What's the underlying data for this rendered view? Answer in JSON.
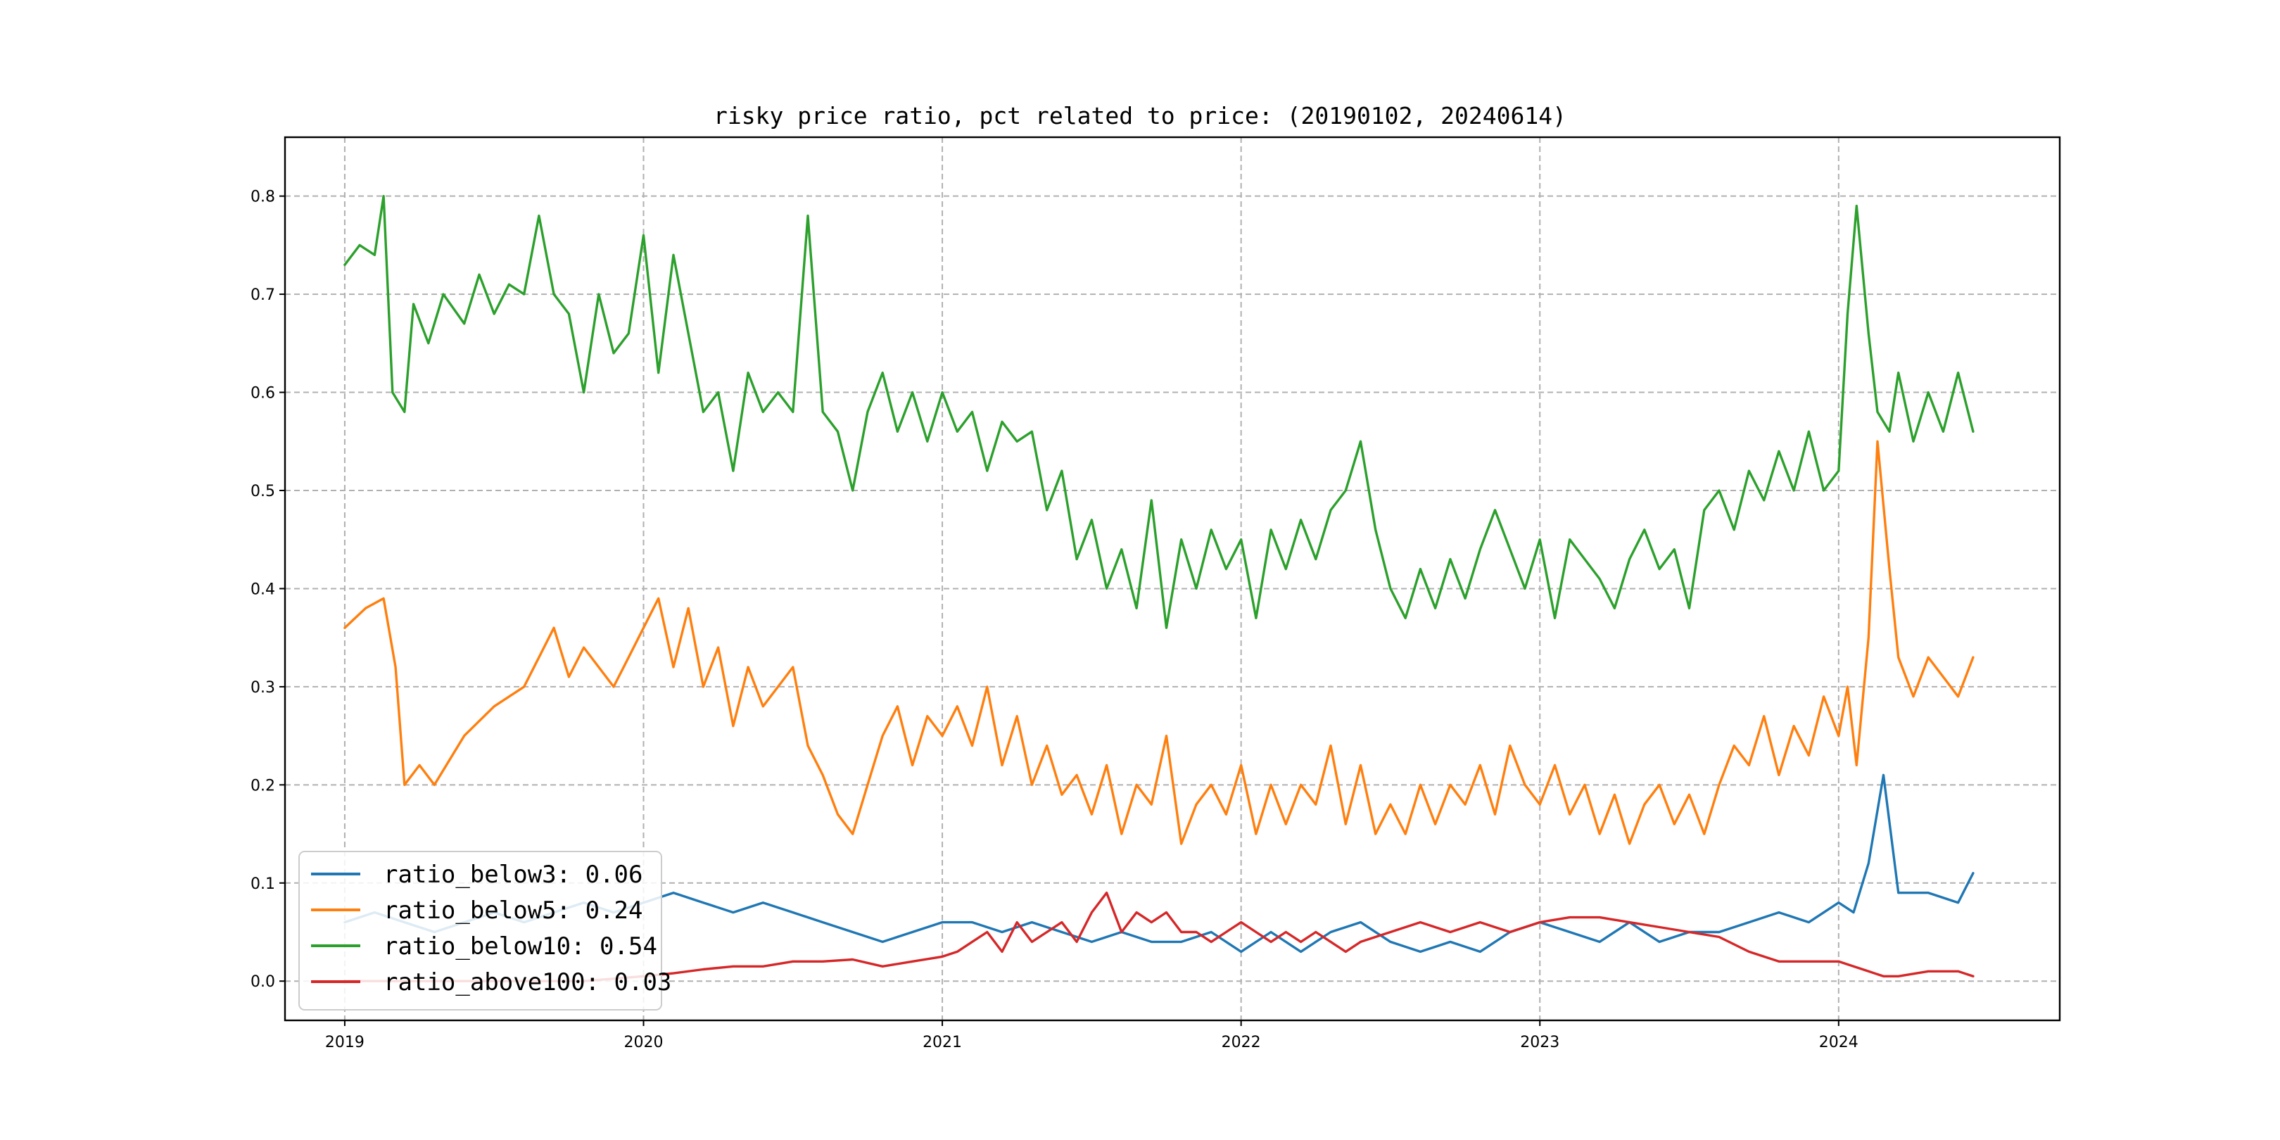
{
  "chart_data": {
    "type": "line",
    "title": "risky price ratio, pct related to price: (20190102, 20240614)",
    "xlabel": "",
    "ylabel": "",
    "xlim": [
      2018.8,
      2024.74
    ],
    "ylim": [
      -0.04,
      0.86
    ],
    "x_ticks": [
      2019,
      2020,
      2021,
      2022,
      2023,
      2024
    ],
    "x_tick_labels": [
      "2019",
      "2020",
      "2021",
      "2022",
      "2023",
      "2024"
    ],
    "y_ticks": [
      0.0,
      0.1,
      0.2,
      0.3,
      0.4,
      0.5,
      0.6,
      0.7,
      0.8
    ],
    "y_tick_labels": [
      "0.0",
      "0.1",
      "0.2",
      "0.3",
      "0.4",
      "0.5",
      "0.6",
      "0.7",
      "0.8"
    ],
    "grid": true,
    "legend_position": "lower-left",
    "series": [
      {
        "name": "ratio_below3",
        "legend_label": "ratio_below3: 0.06",
        "color": "#1f77b4",
        "x": [
          2019.0,
          2019.1,
          2019.2,
          2019.3,
          2019.4,
          2019.5,
          2019.6,
          2019.7,
          2019.8,
          2019.9,
          2020.0,
          2020.1,
          2020.2,
          2020.3,
          2020.4,
          2020.5,
          2020.6,
          2020.7,
          2020.8,
          2020.9,
          2021.0,
          2021.1,
          2021.2,
          2021.3,
          2021.4,
          2021.5,
          2021.6,
          2021.7,
          2021.8,
          2021.9,
          2022.0,
          2022.1,
          2022.2,
          2022.3,
          2022.4,
          2022.5,
          2022.6,
          2022.7,
          2022.8,
          2022.9,
          2023.0,
          2023.1,
          2023.2,
          2023.3,
          2023.4,
          2023.5,
          2023.6,
          2023.7,
          2023.8,
          2023.9,
          2024.0,
          2024.05,
          2024.1,
          2024.15,
          2024.2,
          2024.3,
          2024.4,
          2024.45
        ],
        "y": [
          0.06,
          0.07,
          0.06,
          0.05,
          0.06,
          0.07,
          0.06,
          0.07,
          0.08,
          0.07,
          0.08,
          0.09,
          0.08,
          0.07,
          0.08,
          0.07,
          0.06,
          0.05,
          0.04,
          0.05,
          0.06,
          0.06,
          0.05,
          0.06,
          0.05,
          0.04,
          0.05,
          0.04,
          0.04,
          0.05,
          0.03,
          0.05,
          0.03,
          0.05,
          0.06,
          0.04,
          0.03,
          0.04,
          0.03,
          0.05,
          0.06,
          0.05,
          0.04,
          0.06,
          0.04,
          0.05,
          0.05,
          0.06,
          0.07,
          0.06,
          0.08,
          0.07,
          0.12,
          0.21,
          0.09,
          0.09,
          0.08,
          0.11
        ]
      },
      {
        "name": "ratio_below5",
        "legend_label": "ratio_below5: 0.24",
        "color": "#ff7f0e",
        "x": [
          2019.0,
          2019.07,
          2019.13,
          2019.17,
          2019.2,
          2019.25,
          2019.3,
          2019.4,
          2019.5,
          2019.6,
          2019.65,
          2019.7,
          2019.75,
          2019.8,
          2019.9,
          2019.95,
          2020.0,
          2020.05,
          2020.1,
          2020.15,
          2020.2,
          2020.25,
          2020.3,
          2020.35,
          2020.4,
          2020.45,
          2020.5,
          2020.55,
          2020.6,
          2020.65,
          2020.7,
          2020.75,
          2020.8,
          2020.85,
          2020.9,
          2020.95,
          2021.0,
          2021.05,
          2021.1,
          2021.15,
          2021.2,
          2021.25,
          2021.3,
          2021.35,
          2021.4,
          2021.45,
          2021.5,
          2021.55,
          2021.6,
          2021.65,
          2021.7,
          2021.75,
          2021.8,
          2021.85,
          2021.9,
          2021.95,
          2022.0,
          2022.05,
          2022.1,
          2022.15,
          2022.2,
          2022.25,
          2022.3,
          2022.35,
          2022.4,
          2022.45,
          2022.5,
          2022.55,
          2022.6,
          2022.65,
          2022.7,
          2022.75,
          2022.8,
          2022.85,
          2022.9,
          2022.95,
          2023.0,
          2023.05,
          2023.1,
          2023.15,
          2023.2,
          2023.25,
          2023.3,
          2023.35,
          2023.4,
          2023.45,
          2023.5,
          2023.55,
          2023.6,
          2023.65,
          2023.7,
          2023.75,
          2023.8,
          2023.85,
          2023.9,
          2023.95,
          2024.0,
          2024.03,
          2024.06,
          2024.1,
          2024.13,
          2024.17,
          2024.2,
          2024.25,
          2024.3,
          2024.35,
          2024.4,
          2024.45
        ],
        "y": [
          0.36,
          0.38,
          0.39,
          0.32,
          0.2,
          0.22,
          0.2,
          0.25,
          0.28,
          0.3,
          0.33,
          0.36,
          0.31,
          0.34,
          0.3,
          0.33,
          0.36,
          0.39,
          0.32,
          0.38,
          0.3,
          0.34,
          0.26,
          0.32,
          0.28,
          0.3,
          0.32,
          0.24,
          0.21,
          0.17,
          0.15,
          0.2,
          0.25,
          0.28,
          0.22,
          0.27,
          0.25,
          0.28,
          0.24,
          0.3,
          0.22,
          0.27,
          0.2,
          0.24,
          0.19,
          0.21,
          0.17,
          0.22,
          0.15,
          0.2,
          0.18,
          0.25,
          0.14,
          0.18,
          0.2,
          0.17,
          0.22,
          0.15,
          0.2,
          0.16,
          0.2,
          0.18,
          0.24,
          0.16,
          0.22,
          0.15,
          0.18,
          0.15,
          0.2,
          0.16,
          0.2,
          0.18,
          0.22,
          0.17,
          0.24,
          0.2,
          0.18,
          0.22,
          0.17,
          0.2,
          0.15,
          0.19,
          0.14,
          0.18,
          0.2,
          0.16,
          0.19,
          0.15,
          0.2,
          0.24,
          0.22,
          0.27,
          0.21,
          0.26,
          0.23,
          0.29,
          0.25,
          0.3,
          0.22,
          0.35,
          0.55,
          0.42,
          0.33,
          0.29,
          0.33,
          0.31,
          0.29,
          0.33
        ]
      },
      {
        "name": "ratio_below10",
        "legend_label": "ratio_below10: 0.54",
        "color": "#2ca02c",
        "x": [
          2019.0,
          2019.05,
          2019.1,
          2019.13,
          2019.16,
          2019.2,
          2019.23,
          2019.28,
          2019.33,
          2019.4,
          2019.45,
          2019.5,
          2019.55,
          2019.6,
          2019.65,
          2019.7,
          2019.75,
          2019.8,
          2019.85,
          2019.9,
          2019.95,
          2020.0,
          2020.05,
          2020.1,
          2020.15,
          2020.2,
          2020.25,
          2020.3,
          2020.35,
          2020.4,
          2020.45,
          2020.5,
          2020.55,
          2020.6,
          2020.65,
          2020.7,
          2020.75,
          2020.8,
          2020.85,
          2020.9,
          2020.95,
          2021.0,
          2021.05,
          2021.1,
          2021.15,
          2021.2,
          2021.25,
          2021.3,
          2021.35,
          2021.4,
          2021.45,
          2021.5,
          2021.55,
          2021.6,
          2021.65,
          2021.7,
          2021.75,
          2021.8,
          2021.85,
          2021.9,
          2021.95,
          2022.0,
          2022.05,
          2022.1,
          2022.15,
          2022.2,
          2022.25,
          2022.3,
          2022.35,
          2022.4,
          2022.45,
          2022.5,
          2022.55,
          2022.6,
          2022.65,
          2022.7,
          2022.75,
          2022.8,
          2022.85,
          2022.9,
          2022.95,
          2023.0,
          2023.05,
          2023.1,
          2023.15,
          2023.2,
          2023.25,
          2023.3,
          2023.35,
          2023.4,
          2023.45,
          2023.5,
          2023.55,
          2023.6,
          2023.65,
          2023.7,
          2023.75,
          2023.8,
          2023.85,
          2023.9,
          2023.95,
          2024.0,
          2024.03,
          2024.06,
          2024.1,
          2024.13,
          2024.17,
          2024.2,
          2024.25,
          2024.3,
          2024.35,
          2024.4,
          2024.45
        ],
        "y": [
          0.73,
          0.75,
          0.74,
          0.8,
          0.6,
          0.58,
          0.69,
          0.65,
          0.7,
          0.67,
          0.72,
          0.68,
          0.71,
          0.7,
          0.78,
          0.7,
          0.68,
          0.6,
          0.7,
          0.64,
          0.66,
          0.76,
          0.62,
          0.74,
          0.66,
          0.58,
          0.6,
          0.52,
          0.62,
          0.58,
          0.6,
          0.58,
          0.78,
          0.58,
          0.56,
          0.5,
          0.58,
          0.62,
          0.56,
          0.6,
          0.55,
          0.6,
          0.56,
          0.58,
          0.52,
          0.57,
          0.55,
          0.56,
          0.48,
          0.52,
          0.43,
          0.47,
          0.4,
          0.44,
          0.38,
          0.49,
          0.36,
          0.45,
          0.4,
          0.46,
          0.42,
          0.45,
          0.37,
          0.46,
          0.42,
          0.47,
          0.43,
          0.48,
          0.5,
          0.55,
          0.46,
          0.4,
          0.37,
          0.42,
          0.38,
          0.43,
          0.39,
          0.44,
          0.48,
          0.44,
          0.4,
          0.45,
          0.37,
          0.45,
          0.43,
          0.41,
          0.38,
          0.43,
          0.46,
          0.42,
          0.44,
          0.38,
          0.48,
          0.5,
          0.46,
          0.52,
          0.49,
          0.54,
          0.5,
          0.56,
          0.5,
          0.52,
          0.68,
          0.79,
          0.66,
          0.58,
          0.56,
          0.62,
          0.55,
          0.6,
          0.56,
          0.62,
          0.56
        ]
      },
      {
        "name": "ratio_above100",
        "legend_label": "ratio_above100: 0.03",
        "color": "#d62728",
        "x": [
          2019.0,
          2019.2,
          2019.4,
          2019.6,
          2019.8,
          2020.0,
          2020.1,
          2020.2,
          2020.3,
          2020.4,
          2020.5,
          2020.6,
          2020.7,
          2020.8,
          2020.9,
          2021.0,
          2021.05,
          2021.1,
          2021.15,
          2021.2,
          2021.25,
          2021.3,
          2021.35,
          2021.4,
          2021.45,
          2021.5,
          2021.55,
          2021.6,
          2021.65,
          2021.7,
          2021.75,
          2021.8,
          2021.85,
          2021.9,
          2021.95,
          2022.0,
          2022.05,
          2022.1,
          2022.15,
          2022.2,
          2022.25,
          2022.3,
          2022.35,
          2022.4,
          2022.5,
          2022.6,
          2022.7,
          2022.8,
          2022.9,
          2023.0,
          2023.1,
          2023.2,
          2023.3,
          2023.4,
          2023.5,
          2023.6,
          2023.7,
          2023.8,
          2023.9,
          2024.0,
          2024.05,
          2024.1,
          2024.15,
          2024.2,
          2024.3,
          2024.4,
          2024.45
        ],
        "y": [
          0.0,
          0.0,
          0.0,
          0.0,
          0.0,
          0.005,
          0.008,
          0.012,
          0.015,
          0.015,
          0.02,
          0.02,
          0.022,
          0.015,
          0.02,
          0.025,
          0.03,
          0.04,
          0.05,
          0.03,
          0.06,
          0.04,
          0.05,
          0.06,
          0.04,
          0.07,
          0.09,
          0.05,
          0.07,
          0.06,
          0.07,
          0.05,
          0.05,
          0.04,
          0.05,
          0.06,
          0.05,
          0.04,
          0.05,
          0.04,
          0.05,
          0.04,
          0.03,
          0.04,
          0.05,
          0.06,
          0.05,
          0.06,
          0.05,
          0.06,
          0.065,
          0.065,
          0.06,
          0.055,
          0.05,
          0.045,
          0.03,
          0.02,
          0.02,
          0.02,
          0.015,
          0.01,
          0.005,
          0.005,
          0.01,
          0.01,
          0.005
        ]
      }
    ]
  }
}
